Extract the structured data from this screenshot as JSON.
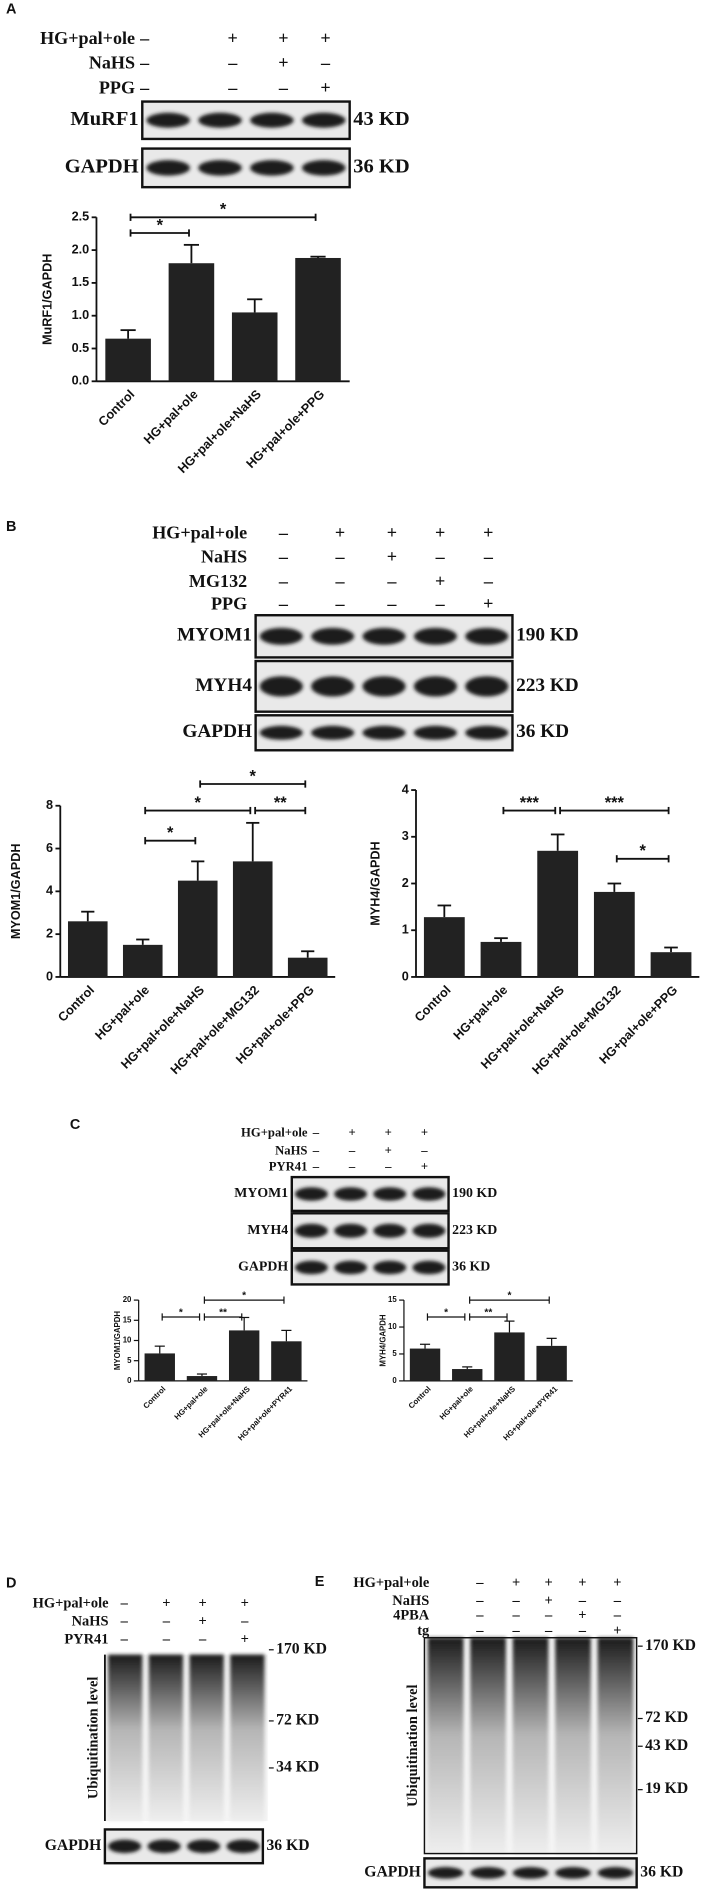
{
  "panels": [
    {
      "label": "A",
      "treatments": [
        {
          "name": "HG+pal+ole",
          "signs": [
            "–",
            "+",
            "+",
            "+"
          ]
        },
        {
          "name": "NaHS",
          "signs": [
            "–",
            "–",
            "+",
            "–"
          ]
        },
        {
          "name": "PPG",
          "signs": [
            "–",
            "–",
            "–",
            "+"
          ]
        }
      ],
      "blots": [
        {
          "name": "MuRF1",
          "size": "43 KD"
        },
        {
          "name": "GAPDH",
          "size": "36 KD"
        }
      ]
    },
    {
      "label": "B",
      "treatments": [
        {
          "name": "HG+pal+ole",
          "signs": [
            "–",
            "+",
            "+",
            "+",
            "+"
          ]
        },
        {
          "name": "NaHS",
          "signs": [
            "–",
            "–",
            "+",
            "–",
            "–"
          ]
        },
        {
          "name": "MG132",
          "signs": [
            "–",
            "–",
            "–",
            "+",
            "–"
          ]
        },
        {
          "name": "PPG",
          "signs": [
            "–",
            "–",
            "–",
            "–",
            "+"
          ]
        }
      ],
      "blots": [
        {
          "name": "MYOM1",
          "size": "190 KD"
        },
        {
          "name": "MYH4",
          "size": "223 KD"
        },
        {
          "name": "GAPDH",
          "size": "36 KD"
        }
      ]
    },
    {
      "label": "C",
      "treatments": [
        {
          "name": "HG+pal+ole",
          "signs": [
            "–",
            "+",
            "+",
            "+"
          ]
        },
        {
          "name": "NaHS",
          "signs": [
            "–",
            "–",
            "+",
            "–"
          ]
        },
        {
          "name": "PYR41",
          "signs": [
            "–",
            "–",
            "–",
            "+"
          ]
        }
      ],
      "blots": [
        {
          "name": "MYOM1",
          "size": "190 KD"
        },
        {
          "name": "MYH4",
          "size": "223 KD"
        },
        {
          "name": "GAPDH",
          "size": "36 KD"
        }
      ]
    },
    {
      "label": "D",
      "treatments": [
        {
          "name": "HG+pal+ole",
          "signs": [
            "–",
            "+",
            "+",
            "+"
          ]
        },
        {
          "name": "NaHS",
          "signs": [
            "–",
            "–",
            "+",
            "–"
          ]
        },
        {
          "name": "PYR41",
          "signs": [
            "–",
            "–",
            "–",
            "+"
          ]
        }
      ],
      "ylabel": "Ubiquitination level",
      "markers": [
        "170 KD",
        "72 KD",
        "34 KD"
      ],
      "blots": [
        {
          "name": "GAPDH",
          "size": "36 KD"
        }
      ]
    },
    {
      "label": "E",
      "treatments": [
        {
          "name": "HG+pal+ole",
          "signs": [
            "–",
            "+",
            "+",
            "+",
            "+"
          ]
        },
        {
          "name": "NaHS",
          "signs": [
            "–",
            "–",
            "+",
            "–",
            "–"
          ]
        },
        {
          "name": "4PBA",
          "signs": [
            "–",
            "–",
            "–",
            "+",
            "–"
          ]
        },
        {
          "name": "tg",
          "signs": [
            "–",
            "–",
            "–",
            "–",
            "+"
          ]
        }
      ],
      "ylabel": "Ubiquitination level",
      "markers": [
        "170 KD",
        "72 KD",
        "43 KD",
        "19 KD"
      ],
      "blots": [
        {
          "name": "GAPDH",
          "size": "36 KD"
        }
      ]
    }
  ],
  "chart_data": [
    {
      "type": "bar",
      "ylabel": "MuRF1/GAPDH",
      "color": "#222222",
      "categories": [
        "Control",
        "HG+pal+ole",
        "HG+pal+ole+NaHS",
        "HG+pal+ole+PPG"
      ],
      "values": [
        0.65,
        1.8,
        1.05,
        1.88
      ],
      "errors": [
        0.13,
        0.28,
        0.2,
        0.02
      ],
      "ylim": [
        0,
        2.5
      ],
      "yticks": [
        {
          "value": 0,
          "label": "0.0"
        },
        0.5,
        {
          "value": 1,
          "label": "1.0"
        },
        1.5,
        {
          "value": 2,
          "label": "2.0"
        },
        2.5
      ],
      "brackets": [
        {
          "between": [
            0,
            1
          ],
          "label": "*"
        },
        {
          "between": [
            0,
            3
          ],
          "label": "*"
        }
      ]
    },
    {
      "type": "bar",
      "ylabel": "MYOM1/GAPDH",
      "color": "#222222",
      "categories": [
        "Control",
        "HG+pal+ole",
        "HG+pal+ole+NaHS",
        "HG+pal+ole+MG132",
        "HG+pal+ole+PPG"
      ],
      "values": [
        2.6,
        1.5,
        4.5,
        5.4,
        0.9
      ],
      "errors": [
        0.45,
        0.25,
        0.9,
        1.8,
        0.3
      ],
      "ylim": [
        0,
        8
      ],
      "yticks": [
        0,
        2,
        4,
        6,
        8
      ],
      "brackets": [
        {
          "between": [
            2,
            4
          ],
          "label": "*"
        },
        {
          "between": [
            1,
            3
          ],
          "label": "*"
        },
        {
          "between": [
            3,
            4
          ],
          "label": "**"
        },
        {
          "between": [
            1,
            2
          ],
          "label": "*"
        }
      ]
    },
    {
      "type": "bar",
      "ylabel": "MYH4/GAPDH",
      "color": "#222222",
      "categories": [
        "Control",
        "HG+pal+ole",
        "HG+pal+ole+NaHS",
        "HG+pal+ole+MG132",
        "HG+pal+ole+PPG"
      ],
      "values": [
        1.28,
        0.75,
        2.7,
        1.82,
        0.53
      ],
      "errors": [
        0.25,
        0.08,
        0.35,
        0.18,
        0.1
      ],
      "ylim": [
        0,
        4
      ],
      "yticks": [
        0,
        1,
        2,
        3,
        4
      ],
      "brackets": [
        {
          "between": [
            1,
            2
          ],
          "label": "***"
        },
        {
          "between": [
            2,
            4
          ],
          "label": "***"
        },
        {
          "between": [
            3,
            4
          ],
          "label": "*"
        }
      ]
    },
    {
      "type": "bar",
      "ylabel": "MYOM1/GAPDH",
      "color": "#222222",
      "categories": [
        "Control",
        "HG+pal+ole",
        "HG+pal+ole+NaHS",
        "HG+pal+ole+PYR41"
      ],
      "values": [
        6.8,
        1.2,
        12.5,
        9.8
      ],
      "errors": [
        1.8,
        0.5,
        3.2,
        2.7
      ],
      "ylim": [
        0,
        20
      ],
      "yticks": [
        0,
        5,
        10,
        15,
        20
      ],
      "brackets": [
        {
          "between": [
            0,
            1
          ],
          "label": "*"
        },
        {
          "between": [
            1,
            2
          ],
          "label": "**"
        },
        {
          "between": [
            1,
            3
          ],
          "label": "*"
        }
      ]
    },
    {
      "type": "bar",
      "ylabel": "MYH4/GAPDH",
      "color": "#222222",
      "categories": [
        "Control",
        "HG+pal+ole",
        "HG+pal+ole+NaHS",
        "HG+pal+ole+PYR41"
      ],
      "values": [
        6,
        2.2,
        9,
        6.5
      ],
      "errors": [
        0.8,
        0.4,
        2.1,
        1.4
      ],
      "ylim": [
        0,
        15
      ],
      "yticks": [
        0,
        5,
        10,
        15
      ],
      "brackets": [
        {
          "between": [
            0,
            1
          ],
          "label": "*"
        },
        {
          "between": [
            1,
            2
          ],
          "label": "**"
        },
        {
          "between": [
            1,
            3
          ],
          "label": "*"
        }
      ]
    }
  ]
}
